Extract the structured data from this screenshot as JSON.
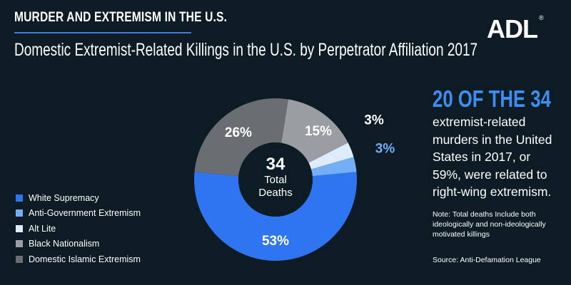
{
  "header": {
    "kicker": "MURDER AND EXTREMISM IN THE U.S.",
    "title": "Domestic Extremist-Related Killings in the U.S. by Perpetrator Affiliation 2017",
    "logo_text": "ADL",
    "logo_mark": "®"
  },
  "chart_data": {
    "type": "pie",
    "donut": true,
    "title": "Domestic Extremist-Related Killings in the U.S. by Perpetrator Affiliation 2017",
    "center_value": "34",
    "center_label_line1": "Total",
    "center_label_line2": "Deaths",
    "slices": [
      {
        "name": "White Supremacy",
        "value": 53,
        "label": "53%",
        "color": "#2f74f0"
      },
      {
        "name": "Anti-Government Extremism",
        "value": 3,
        "label": "3%",
        "color": "#74aef5"
      },
      {
        "name": "Alt Lite",
        "value": 3,
        "label": "3%",
        "color": "#deebfb"
      },
      {
        "name": "Black Nationalism",
        "value": 15,
        "label": "15%",
        "color": "#9a9ea2"
      },
      {
        "name": "Domestic Islamic Extremism",
        "value": 26,
        "label": "26%",
        "color": "#6a6e72"
      }
    ],
    "legend_position": "left"
  },
  "sidebar": {
    "headline": "20 OF THE 34",
    "body": "extremist-related murders in the United States in 2017, or 59%, were related to right-wing extremism.",
    "note": "Note: Total deaths Include both ideologically and non-ideologically motivated killings",
    "source": "Source: Anti-Defamation League"
  },
  "colors": {
    "background": "#0d1b24",
    "accent": "#3b8ff2"
  }
}
